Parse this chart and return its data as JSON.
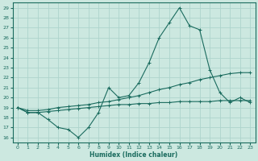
{
  "xlabel": "Humidex (Indice chaleur)",
  "background_color": "#cce8e0",
  "grid_color": "#aed4cc",
  "line_color": "#1a6b5e",
  "xlim": [
    -0.5,
    23.5
  ],
  "ylim": [
    15.5,
    29.5
  ],
  "xticks": [
    0,
    1,
    2,
    3,
    4,
    5,
    6,
    7,
    8,
    9,
    10,
    11,
    12,
    13,
    14,
    15,
    16,
    17,
    18,
    19,
    20,
    21,
    22,
    23
  ],
  "yticks": [
    16,
    17,
    18,
    19,
    20,
    21,
    22,
    23,
    24,
    25,
    26,
    27,
    28,
    29
  ],
  "line1_x": [
    0,
    1,
    2,
    3,
    4,
    5,
    6,
    7,
    8,
    9,
    10,
    11,
    12,
    13,
    14,
    15,
    16,
    17,
    18,
    19,
    20,
    21,
    22,
    23
  ],
  "line1_y": [
    19.0,
    18.5,
    18.5,
    17.8,
    17.0,
    16.8,
    16.0,
    17.0,
    18.5,
    21.0,
    20.0,
    20.2,
    21.5,
    23.5,
    26.0,
    27.5,
    29.0,
    27.2,
    26.8,
    22.8,
    20.5,
    19.5,
    20.0,
    19.5
  ],
  "line2_x": [
    0,
    1,
    2,
    3,
    4,
    5,
    6,
    7,
    8,
    9,
    10,
    11,
    12,
    13,
    14,
    15,
    16,
    17,
    18,
    19,
    20,
    21,
    22,
    23
  ],
  "line2_y": [
    19.0,
    18.7,
    18.7,
    18.8,
    19.0,
    19.1,
    19.2,
    19.3,
    19.5,
    19.6,
    19.8,
    20.0,
    20.2,
    20.5,
    20.8,
    21.0,
    21.3,
    21.5,
    21.8,
    22.0,
    22.2,
    22.4,
    22.5,
    22.5
  ],
  "line3_x": [
    0,
    1,
    2,
    3,
    4,
    5,
    6,
    7,
    8,
    9,
    10,
    11,
    12,
    13,
    14,
    15,
    16,
    17,
    18,
    19,
    20,
    21,
    22,
    23
  ],
  "line3_y": [
    19.0,
    18.5,
    18.5,
    18.6,
    18.7,
    18.8,
    18.9,
    19.0,
    19.1,
    19.2,
    19.3,
    19.3,
    19.4,
    19.4,
    19.5,
    19.5,
    19.6,
    19.6,
    19.6,
    19.6,
    19.7,
    19.7,
    19.7,
    19.7
  ]
}
